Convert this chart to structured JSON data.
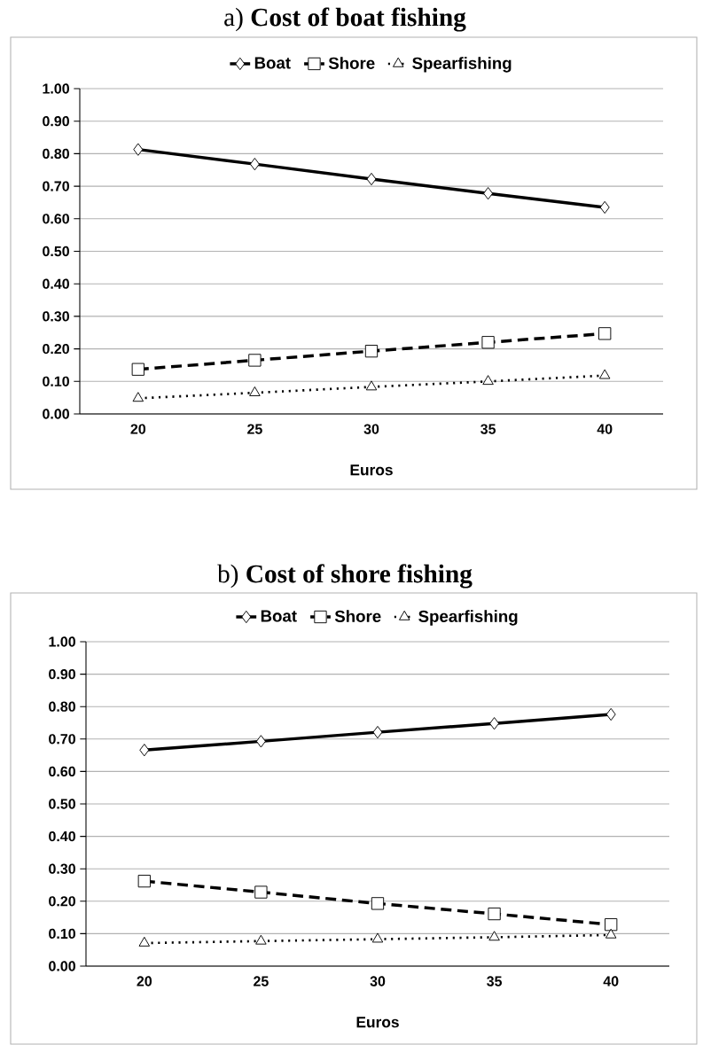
{
  "chart_data": [
    {
      "type": "line",
      "title": "a)   **Cost of boat fishing**",
      "xlabel": "Euros",
      "categories": [
        "20",
        "25",
        "30",
        "35",
        "40"
      ],
      "series": [
        {
          "name": "Boat",
          "color": "#000000",
          "marker": "diamond",
          "line_style": "solid",
          "values": [
            0.813,
            0.768,
            0.722,
            0.678,
            0.635
          ]
        },
        {
          "name": "Shore",
          "color": "#000000",
          "marker": "square",
          "line_style": "dashed",
          "values": [
            0.137,
            0.165,
            0.193,
            0.22,
            0.247
          ]
        },
        {
          "name": "Spearfishing",
          "color": "#000000",
          "marker": "triangle",
          "line_style": "dotted",
          "values": [
            0.048,
            0.065,
            0.083,
            0.1,
            0.118
          ]
        }
      ],
      "ylim": [
        0,
        1
      ],
      "yticks": [
        {
          "value": 0,
          "label": "0.00"
        },
        {
          "value": 0.1,
          "label": "0.10"
        },
        {
          "value": 0.2,
          "label": "0.20"
        },
        {
          "value": 0.3,
          "label": "0.30"
        },
        {
          "value": 0.4,
          "label": "0.40"
        },
        {
          "value": 0.5,
          "label": "0.50"
        },
        {
          "value": 0.6,
          "label": "0.60"
        },
        {
          "value": 0.7,
          "label": "0.70"
        },
        {
          "value": 0.8,
          "label": "0.80"
        },
        {
          "value": 0.9,
          "label": "0.90"
        },
        {
          "value": 1,
          "label": "1.00"
        }
      ],
      "grid": "y",
      "legend": "top"
    },
    {
      "type": "line",
      "title": "b)   **Cost of shore fishing**",
      "xlabel": "Euros",
      "categories": [
        "20",
        "25",
        "30",
        "35",
        "40"
      ],
      "series": [
        {
          "name": "Boat",
          "color": "#000000",
          "marker": "diamond",
          "line_style": "solid",
          "values": [
            0.666,
            0.693,
            0.721,
            0.748,
            0.776
          ]
        },
        {
          "name": "Shore",
          "color": "#000000",
          "marker": "square",
          "line_style": "dashed",
          "values": [
            0.262,
            0.228,
            0.193,
            0.161,
            0.128
          ]
        },
        {
          "name": "Spearfishing",
          "color": "#000000",
          "marker": "triangle",
          "line_style": "dotted",
          "values": [
            0.071,
            0.077,
            0.083,
            0.089,
            0.096
          ]
        }
      ],
      "ylim": [
        0,
        1
      ],
      "yticks": [
        {
          "value": 0,
          "label": "0.00"
        },
        {
          "value": 0.1,
          "label": "0.10"
        },
        {
          "value": 0.2,
          "label": "0.20"
        },
        {
          "value": 0.3,
          "label": "0.30"
        },
        {
          "value": 0.4,
          "label": "0.40"
        },
        {
          "value": 0.5,
          "label": "0.50"
        },
        {
          "value": 0.6,
          "label": "0.60"
        },
        {
          "value": 0.7,
          "label": "0.70"
        },
        {
          "value": 0.8,
          "label": "0.80"
        },
        {
          "value": 0.9,
          "label": "0.90"
        },
        {
          "value": 1,
          "label": "1.00"
        }
      ],
      "grid": "y",
      "legend": "top"
    }
  ]
}
